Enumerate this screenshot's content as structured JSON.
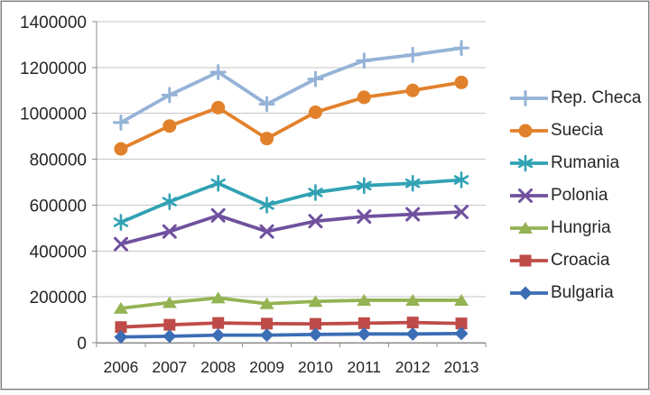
{
  "chart_data": {
    "type": "line",
    "title": "",
    "xlabel": "",
    "ylabel": "",
    "categories": [
      "2006",
      "2007",
      "2008",
      "2009",
      "2010",
      "2011",
      "2012",
      "2013"
    ],
    "series": [
      {
        "name": "Rep. Checa",
        "color": "#95B3D7",
        "marker": "plus",
        "values": [
          960000,
          1080000,
          1180000,
          1040000,
          1150000,
          1230000,
          1255000,
          1285000
        ]
      },
      {
        "name": "Suecia",
        "color": "#E2812B",
        "marker": "circle",
        "values": [
          845000,
          945000,
          1025000,
          890000,
          1005000,
          1070000,
          1100000,
          1135000
        ]
      },
      {
        "name": "Rumania",
        "color": "#31A2B4",
        "marker": "asterisk",
        "values": [
          525000,
          615000,
          695000,
          600000,
          655000,
          685000,
          695000,
          710000
        ]
      },
      {
        "name": "Polonia",
        "color": "#6F519E",
        "marker": "x",
        "values": [
          430000,
          485000,
          555000,
          485000,
          530000,
          550000,
          560000,
          570000
        ]
      },
      {
        "name": "Hungria",
        "color": "#94B353",
        "marker": "triangle",
        "values": [
          150000,
          175000,
          195000,
          170000,
          180000,
          185000,
          185000,
          185000
        ]
      },
      {
        "name": "Croacia",
        "color": "#BE4B48",
        "marker": "square",
        "values": [
          68000,
          78000,
          86000,
          83000,
          82000,
          85000,
          88000,
          84000
        ]
      },
      {
        "name": "Bulgaria",
        "color": "#3B6DB5",
        "marker": "diamond",
        "values": [
          25000,
          28000,
          33000,
          33000,
          36000,
          38000,
          38000,
          40000
        ]
      }
    ],
    "ylim": [
      0,
      1400000
    ],
    "ytick_step": 200000,
    "ytick_labels": [
      "0",
      "200000",
      "400000",
      "600000",
      "800000",
      "1000000",
      "1200000",
      "1400000"
    ],
    "grid": "horizontal-only",
    "legend_position": "right"
  },
  "colors": {
    "background": "#ffffff",
    "gridline": "#c6c6c6",
    "axis": "#8c8c8c",
    "tick": "#8c8c8c",
    "label_text": "#262626",
    "frame_outer": "#c9c9c9",
    "frame_inner": "#7f7f7f"
  }
}
